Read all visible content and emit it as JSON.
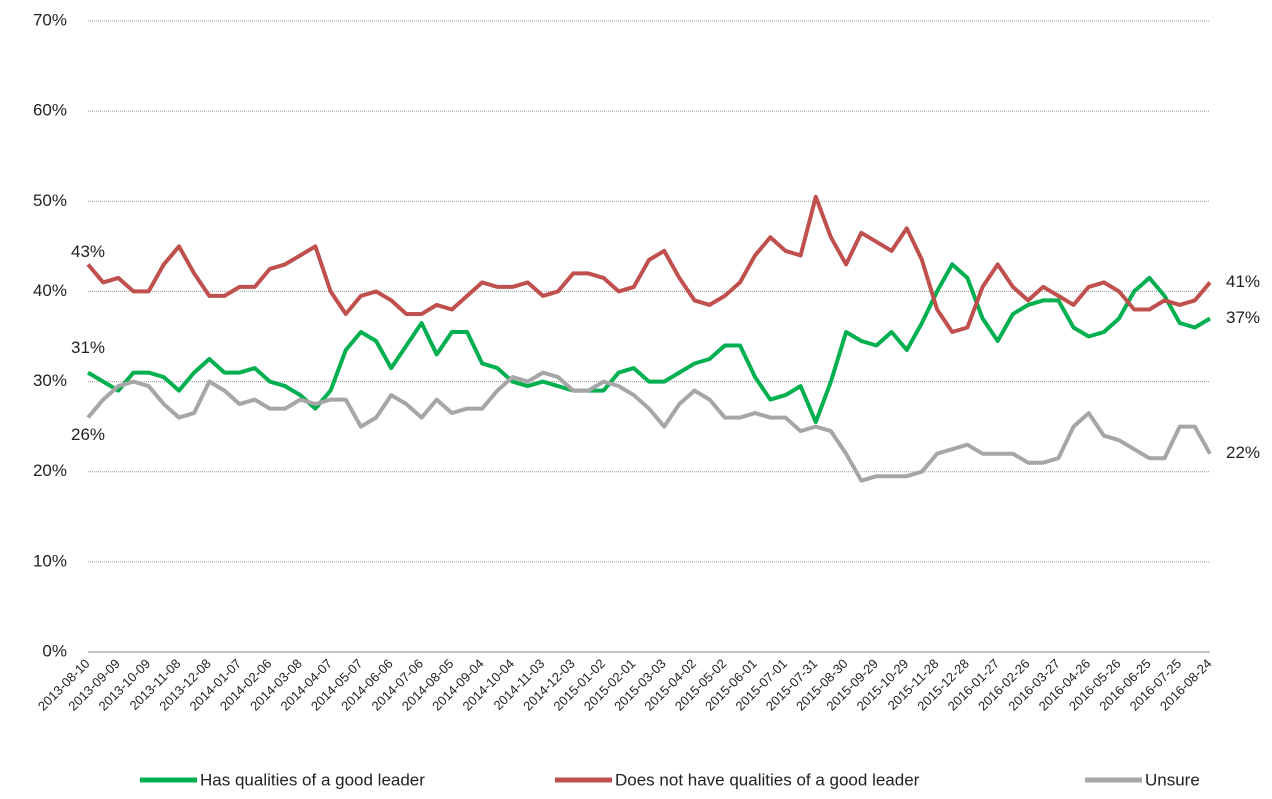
{
  "chart_data": {
    "type": "line",
    "categories": [
      "2013-08-10",
      null,
      "2013-09-09",
      null,
      "2013-10-09",
      null,
      "2013-11-08",
      null,
      "2013-12-08",
      null,
      "2014-01-07",
      null,
      "2014-02-06",
      null,
      "2014-03-08",
      null,
      "2014-04-07",
      null,
      "2014-05-07",
      null,
      "2014-06-06",
      null,
      "2014-07-06",
      null,
      "2014-08-05",
      null,
      "2014-09-04",
      null,
      "2014-10-04",
      null,
      "2014-11-03",
      null,
      "2014-12-03",
      null,
      "2015-01-02",
      null,
      "2015-02-01",
      null,
      "2015-03-03",
      null,
      "2015-04-02",
      null,
      "2015-05-02",
      null,
      "2015-06-01",
      null,
      "2015-07-01",
      null,
      "2015-07-31",
      null,
      "2015-08-30",
      null,
      "2015-09-29",
      null,
      "2015-10-29",
      null,
      "2015-11-28",
      null,
      "2015-12-28",
      null,
      "2016-01-27",
      null,
      "2016-02-26",
      null,
      "2016-03-27",
      null,
      "2016-04-26",
      null,
      "2016-05-26",
      null,
      "2016-06-25",
      null,
      "2016-07-25",
      null,
      "2016-08-24"
    ],
    "series": [
      {
        "name": "Has qualities of a good leader",
        "color": "#00b050",
        "values": [
          31,
          30,
          29,
          31,
          31,
          30.5,
          29,
          31,
          32.5,
          31,
          31,
          31.5,
          30,
          29.5,
          28.5,
          27,
          29,
          33.5,
          35.5,
          34.5,
          31.5,
          34,
          36.5,
          33,
          35.5,
          35.5,
          32,
          31.5,
          30,
          29.5,
          30,
          29.5,
          29,
          29,
          29,
          31,
          31.5,
          30,
          30,
          31,
          32,
          32.5,
          34,
          34,
          30.5,
          28,
          28.5,
          29.5,
          25.5,
          30,
          35.5,
          34.5,
          34,
          35.5,
          33.5,
          36.5,
          40,
          43,
          41.5,
          37,
          34.5,
          37.5,
          38.5,
          39,
          39,
          36,
          35,
          35.5,
          37,
          40,
          41.5,
          39.5,
          36.5,
          36,
          37
        ],
        "value_labels": [
          "31%",
          null,
          null,
          null,
          null,
          null,
          null,
          null,
          null,
          null,
          null,
          null,
          null,
          null,
          null,
          null,
          null,
          null,
          null,
          null,
          null,
          null,
          null,
          null,
          null,
          null,
          null,
          null,
          null,
          null,
          null,
          null,
          null,
          null,
          null,
          null,
          null,
          null,
          null,
          null,
          null,
          null,
          null,
          null,
          null,
          null,
          null,
          null,
          null,
          null,
          null,
          null,
          null,
          null,
          null,
          null,
          null,
          null,
          null,
          null,
          null,
          null,
          null,
          null,
          null,
          null,
          null,
          null,
          null,
          null,
          null,
          null,
          null,
          null,
          "37%"
        ]
      },
      {
        "name": "Does not have qualities of a good leader",
        "color": "#c0504d",
        "values": [
          43,
          41,
          41.5,
          40,
          40,
          43,
          45,
          42,
          39.5,
          39.5,
          40.5,
          40.5,
          42.5,
          43,
          44,
          45,
          40,
          37.5,
          39.5,
          40,
          39,
          37.5,
          37.5,
          38.5,
          38,
          39.5,
          41,
          40.5,
          40.5,
          41,
          39.5,
          40,
          42,
          42,
          41.5,
          40,
          40.5,
          43.5,
          44.5,
          41.5,
          39,
          38.5,
          39.5,
          41,
          44,
          46,
          44.5,
          44,
          50.5,
          46,
          43,
          46.5,
          45.5,
          44.5,
          47,
          43.5,
          38,
          35.5,
          36,
          40.5,
          43,
          40.5,
          39,
          40.5,
          39.5,
          38.5,
          40.5,
          41,
          40,
          38,
          38,
          39,
          38.5,
          39,
          41
        ],
        "value_labels": [
          "43%",
          null,
          null,
          null,
          null,
          null,
          null,
          null,
          null,
          null,
          null,
          null,
          null,
          null,
          null,
          null,
          null,
          null,
          null,
          null,
          null,
          null,
          null,
          null,
          null,
          null,
          null,
          null,
          null,
          null,
          null,
          null,
          null,
          null,
          null,
          null,
          null,
          null,
          null,
          null,
          null,
          null,
          null,
          null,
          null,
          null,
          null,
          null,
          null,
          null,
          null,
          null,
          null,
          null,
          null,
          null,
          null,
          null,
          null,
          null,
          null,
          null,
          null,
          null,
          null,
          null,
          null,
          null,
          null,
          null,
          null,
          null,
          null,
          null,
          "41%"
        ]
      },
      {
        "name": "Unsure",
        "color": "#a6a6a6",
        "values": [
          26,
          28,
          29.5,
          30,
          29.5,
          27.5,
          26,
          26.5,
          30,
          29,
          27.5,
          28,
          27,
          27,
          28,
          27.5,
          28,
          28,
          25,
          26,
          28.5,
          27.5,
          26,
          28,
          26.5,
          27,
          27,
          29,
          30.5,
          30,
          31,
          30.5,
          29,
          29,
          30,
          29.5,
          28.5,
          27,
          25,
          27.5,
          29,
          28,
          26,
          26,
          26.5,
          26,
          26,
          24.5,
          25,
          24.5,
          22,
          19,
          19.5,
          19.5,
          19.5,
          20,
          22,
          22.5,
          23,
          22,
          22,
          22,
          21,
          21,
          21.5,
          25,
          26.5,
          24,
          23.5,
          22.5,
          21.5,
          21.5,
          25,
          25,
          22
        ],
        "value_labels": [
          "26%",
          null,
          null,
          null,
          null,
          null,
          null,
          null,
          null,
          null,
          null,
          null,
          null,
          null,
          null,
          null,
          null,
          null,
          null,
          null,
          null,
          null,
          null,
          null,
          null,
          null,
          null,
          null,
          null,
          null,
          null,
          null,
          null,
          null,
          null,
          null,
          null,
          null,
          null,
          null,
          null,
          null,
          null,
          null,
          null,
          null,
          null,
          null,
          null,
          null,
          null,
          null,
          null,
          null,
          null,
          null,
          null,
          null,
          null,
          null,
          null,
          null,
          null,
          null,
          null,
          null,
          null,
          null,
          null,
          null,
          null,
          null,
          null,
          null,
          "22%"
        ]
      }
    ],
    "ylim": [
      0,
      70
    ],
    "yticks": [
      {
        "value": 0,
        "label": "0%"
      },
      {
        "value": 10,
        "label": "10%"
      },
      {
        "value": 20,
        "label": "20%"
      },
      {
        "value": 30,
        "label": "30%"
      },
      {
        "value": 40,
        "label": "40%"
      },
      {
        "value": 50,
        "label": "50%"
      },
      {
        "value": 60,
        "label": "60%"
      },
      {
        "value": 70,
        "label": "70%"
      }
    ],
    "grid": true,
    "legend": "bottom"
  }
}
